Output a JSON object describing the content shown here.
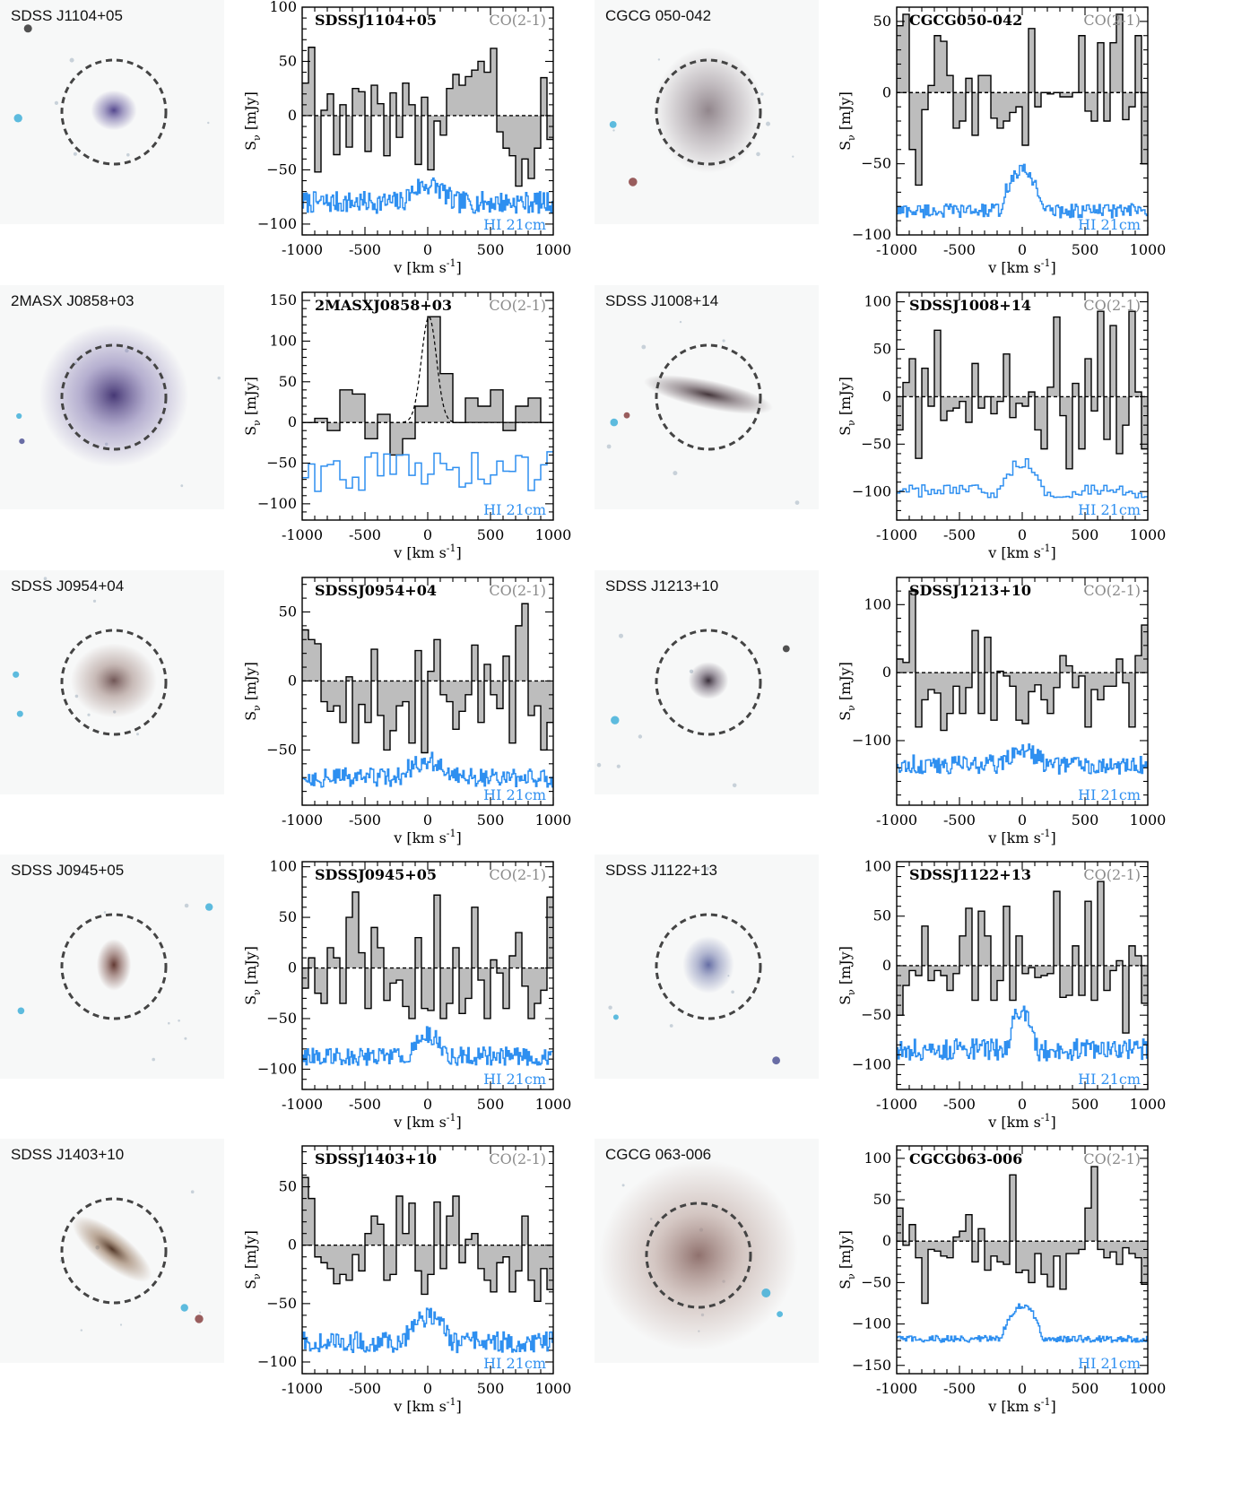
{
  "figure": {
    "line_label": "CO(2-1)",
    "hi_label": "HI 21cm",
    "x_axis_label": "v [km s",
    "x_axis_exp": "-1",
    "x_axis_close": "]",
    "y_axis_label_main": "S",
    "y_axis_label_sub": "ν",
    "y_axis_label_unit": " [mJy]",
    "colors": {
      "co_fill": "#bdbdbd",
      "co_line": "#000000",
      "hi_line": "#2e8ff0",
      "circle": "#444444"
    }
  },
  "panels": [
    {
      "image_label": "SDSS J1104+05",
      "spec_name": "SDSSJ1104+05",
      "galaxy": "bluecompact"
    },
    {
      "image_label": "CGCG 050-042",
      "spec_name": "CGCG050-042",
      "galaxy": "diffuse"
    },
    {
      "image_label": "2MASX J0858+03",
      "spec_name": "2MASXJ0858+03",
      "galaxy": "large"
    },
    {
      "image_label": "SDSS J1008+14",
      "spec_name": "SDSSJ1008+14",
      "galaxy": "edgeon"
    },
    {
      "image_label": "SDSS J0954+04",
      "spec_name": "SDSSJ0954+04",
      "galaxy": "orange"
    },
    {
      "image_label": "SDSS J1213+10",
      "spec_name": "SDSSJ1213+10",
      "galaxy": "small"
    },
    {
      "image_label": "SDSS J0945+05",
      "spec_name": "SDSSJ0945+05",
      "galaxy": "reddish"
    },
    {
      "image_label": "SDSS J1122+13",
      "spec_name": "SDSSJ1122+13",
      "galaxy": "faintblue"
    },
    {
      "image_label": "SDSS J1403+10",
      "spec_name": "SDSSJ1403+10",
      "galaxy": "tilted"
    },
    {
      "image_label": "CGCG 063-006",
      "spec_name": "CGCG063-006",
      "galaxy": "spiral"
    }
  ],
  "chart_data": [
    {
      "type": "line",
      "name": "SDSSJ1104+05",
      "xlim": [
        -1000,
        1000
      ],
      "xticks": [
        -1000,
        -500,
        0,
        500,
        1000
      ],
      "ylim": [
        -110,
        100
      ],
      "yticks": [
        -100,
        -50,
        0,
        50,
        100
      ],
      "co_x": [
        -1000,
        -950,
        -900,
        -850,
        -800,
        -750,
        -700,
        -650,
        -600,
        -550,
        -500,
        -450,
        -400,
        -350,
        -300,
        -250,
        -200,
        -150,
        -100,
        -50,
        0,
        50,
        100,
        150,
        200,
        250,
        300,
        350,
        400,
        450,
        500,
        550,
        600,
        650,
        700,
        750,
        800,
        850,
        900,
        950
      ],
      "co_y": [
        30,
        63,
        -52,
        5,
        20,
        -36,
        10,
        -29,
        25,
        22,
        -33,
        28,
        11,
        -37,
        21,
        -20,
        30,
        10,
        -45,
        17,
        -50,
        -5,
        -18,
        25,
        38,
        28,
        36,
        42,
        50,
        40,
        62,
        -15,
        -30,
        -37,
        -65,
        -40,
        -58,
        -30,
        35,
        -22
      ],
      "hi_y_center": -80,
      "hi_amp": 16,
      "hi_width": 200,
      "hi_noise": 10,
      "hi_bins": 200
    },
    {
      "type": "line",
      "name": "CGCG050-042",
      "xlim": [
        -1000,
        1000
      ],
      "xticks": [
        -1000,
        -500,
        0,
        500,
        1000
      ],
      "ylim": [
        -100,
        60
      ],
      "yticks": [
        -100,
        -50,
        0,
        50
      ],
      "co_x": [
        -1000,
        -950,
        -900,
        -850,
        -800,
        -750,
        -700,
        -650,
        -600,
        -550,
        -500,
        -450,
        -400,
        -350,
        -300,
        -250,
        -200,
        -150,
        -100,
        -50,
        0,
        50,
        100,
        150,
        200,
        250,
        300,
        350,
        400,
        450,
        500,
        550,
        600,
        650,
        700,
        750,
        800,
        850,
        900,
        950
      ],
      "co_y": [
        47,
        55,
        -40,
        -65,
        -12,
        5,
        40,
        36,
        12,
        -25,
        -20,
        10,
        -30,
        12,
        12,
        -18,
        -25,
        -20,
        -14,
        -10,
        -37,
        45,
        -10,
        0,
        -1,
        0,
        -3,
        -3,
        0,
        40,
        -13,
        -20,
        35,
        -20,
        35,
        55,
        -19,
        -10,
        40,
        -50
      ],
      "hi_y_center": -83,
      "hi_amp": 28,
      "hi_width": 180,
      "hi_noise": 5,
      "hi_bins": 180
    },
    {
      "type": "line",
      "name": "2MASXJ0858+03",
      "xlim": [
        -1000,
        1000
      ],
      "xticks": [
        -1000,
        -500,
        0,
        500,
        1000
      ],
      "ylim": [
        -120,
        160
      ],
      "yticks": [
        -100,
        -50,
        0,
        50,
        100,
        150
      ],
      "co_x": [
        -1000,
        -900,
        -800,
        -700,
        -600,
        -500,
        -400,
        -300,
        -200,
        -100,
        0,
        100,
        200,
        300,
        400,
        500,
        600,
        700,
        800,
        900
      ],
      "co_y": [
        0,
        5,
        -10,
        40,
        35,
        -20,
        10,
        -40,
        -20,
        20,
        130,
        60,
        0,
        30,
        20,
        40,
        -10,
        20,
        30,
        0
      ],
      "gauss": {
        "amp": 130,
        "center": 10,
        "sigma": 60
      },
      "hi_y_center": -60,
      "hi_amp": 0,
      "hi_width": 200,
      "hi_noise": 25,
      "hi_bins": 40
    },
    {
      "type": "line",
      "name": "SDSSJ1008+14",
      "xlim": [
        -1000,
        1000
      ],
      "xticks": [
        -1000,
        -500,
        0,
        500,
        1000
      ],
      "ylim": [
        -130,
        110
      ],
      "yticks": [
        -100,
        -50,
        0,
        50,
        100
      ],
      "co_x": [
        -1000,
        -950,
        -900,
        -850,
        -800,
        -750,
        -700,
        -650,
        -600,
        -550,
        -500,
        -450,
        -400,
        -350,
        -300,
        -250,
        -200,
        -150,
        -100,
        -50,
        0,
        50,
        100,
        150,
        200,
        250,
        300,
        350,
        400,
        450,
        500,
        550,
        600,
        650,
        700,
        750,
        800,
        850,
        900,
        950
      ],
      "co_y": [
        -35,
        15,
        40,
        -65,
        30,
        -10,
        70,
        -25,
        -15,
        -12,
        -5,
        -27,
        35,
        -12,
        0,
        -18,
        -5,
        45,
        -22,
        -7,
        -10,
        5,
        -35,
        -55,
        10,
        84,
        -20,
        -76,
        14,
        -55,
        40,
        -15,
        90,
        -45,
        75,
        -60,
        -30,
        90,
        5,
        -55
      ],
      "hi_y_center": -100,
      "hi_amp": 30,
      "hi_width": 160,
      "hi_noise": 7,
      "hi_bins": 80
    },
    {
      "type": "line",
      "name": "SDSSJ0954+04",
      "xlim": [
        -1000,
        1000
      ],
      "xticks": [
        -1000,
        -500,
        0,
        500,
        1000
      ],
      "ylim": [
        -90,
        75
      ],
      "yticks": [
        -50,
        0,
        50
      ],
      "co_x": [
        -1000,
        -950,
        -900,
        -850,
        -800,
        -750,
        -700,
        -650,
        -600,
        -550,
        -500,
        -450,
        -400,
        -350,
        -300,
        -250,
        -200,
        -150,
        -100,
        -50,
        0,
        50,
        100,
        150,
        200,
        250,
        300,
        350,
        400,
        450,
        500,
        550,
        600,
        650,
        700,
        750,
        800,
        850,
        900,
        950
      ],
      "co_y": [
        37,
        30,
        27,
        -15,
        -22,
        -18,
        -30,
        3,
        -45,
        -17,
        -30,
        23,
        -25,
        -50,
        -36,
        -18,
        -15,
        -45,
        22,
        -52,
        7,
        30,
        -10,
        -15,
        -35,
        -22,
        -10,
        26,
        -30,
        12,
        -10,
        -20,
        18,
        -45,
        40,
        56,
        -25,
        -18,
        -50,
        -30
      ],
      "hi_y_center": -70,
      "hi_amp": 12,
      "hi_width": 220,
      "hi_noise": 7,
      "hi_bins": 200
    },
    {
      "type": "line",
      "name": "SDSSJ1213+10",
      "xlim": [
        -1000,
        1000
      ],
      "xticks": [
        -1000,
        -500,
        0,
        500,
        1000
      ],
      "ylim": [
        -195,
        140
      ],
      "yticks": [
        -100,
        0,
        100
      ],
      "co_x": [
        -1000,
        -950,
        -900,
        -850,
        -800,
        -750,
        -700,
        -650,
        -600,
        -550,
        -500,
        -450,
        -400,
        -350,
        -300,
        -250,
        -200,
        -150,
        -100,
        -50,
        0,
        50,
        100,
        150,
        200,
        250,
        300,
        350,
        400,
        450,
        500,
        550,
        600,
        650,
        700,
        750,
        800,
        850,
        900,
        950
      ],
      "co_y": [
        20,
        15,
        120,
        -80,
        -40,
        -25,
        -30,
        -85,
        -60,
        -20,
        -60,
        -22,
        62,
        -60,
        52,
        -70,
        2,
        -5,
        -20,
        -70,
        -75,
        -28,
        -18,
        -40,
        -60,
        -22,
        25,
        10,
        -22,
        -5,
        -80,
        -25,
        -40,
        -20,
        -20,
        20,
        -15,
        -80,
        25,
        70
      ],
      "hi_y_center": -135,
      "hi_amp": 20,
      "hi_width": 180,
      "hi_noise": 14,
      "hi_bins": 200
    },
    {
      "type": "line",
      "name": "SDSSJ0945+05",
      "xlim": [
        -1000,
        1000
      ],
      "xticks": [
        -1000,
        -500,
        0,
        500,
        1000
      ],
      "ylim": [
        -120,
        105
      ],
      "yticks": [
        -100,
        -50,
        0,
        50,
        100
      ],
      "co_x": [
        -1000,
        -950,
        -900,
        -850,
        -800,
        -750,
        -700,
        -650,
        -600,
        -550,
        -500,
        -450,
        -400,
        -350,
        -300,
        -250,
        -200,
        -150,
        -100,
        -50,
        0,
        50,
        100,
        150,
        200,
        250,
        300,
        350,
        400,
        450,
        500,
        550,
        600,
        650,
        700,
        750,
        800,
        850,
        900,
        950
      ],
      "co_y": [
        -20,
        10,
        -25,
        -35,
        20,
        10,
        -35,
        50,
        75,
        15,
        -40,
        40,
        20,
        -32,
        -15,
        -12,
        -38,
        -50,
        30,
        -40,
        -42,
        72,
        -50,
        -35,
        20,
        -45,
        -30,
        60,
        -12,
        -50,
        8,
        -5,
        -40,
        12,
        35,
        -18,
        -50,
        -35,
        -22,
        70
      ],
      "hi_y_center": -87,
      "hi_amp": 20,
      "hi_width": 160,
      "hi_noise": 9,
      "hi_bins": 200
    },
    {
      "type": "line",
      "name": "SDSSJ1122+13",
      "xlim": [
        -1000,
        1000
      ],
      "xticks": [
        -1000,
        -500,
        0,
        500,
        1000
      ],
      "ylim": [
        -125,
        105
      ],
      "yticks": [
        -100,
        -50,
        0,
        50,
        100
      ],
      "co_x": [
        -1000,
        -950,
        -900,
        -850,
        -800,
        -750,
        -700,
        -650,
        -600,
        -550,
        -500,
        -450,
        -400,
        -350,
        -300,
        -250,
        -200,
        -150,
        -100,
        -50,
        0,
        50,
        100,
        150,
        200,
        250,
        300,
        350,
        400,
        450,
        500,
        550,
        600,
        650,
        700,
        750,
        800,
        850,
        900,
        950
      ],
      "co_y": [
        -50,
        -20,
        -5,
        -10,
        40,
        -15,
        -5,
        -10,
        -25,
        -8,
        30,
        58,
        -35,
        55,
        30,
        -35,
        -15,
        60,
        -35,
        30,
        -8,
        -2,
        -12,
        -10,
        -8,
        75,
        -32,
        -30,
        20,
        -30,
        65,
        -35,
        85,
        -25,
        -5,
        5,
        -68,
        20,
        10,
        -38
      ],
      "hi_y_center": -85,
      "hi_amp": 40,
      "hi_width": 120,
      "hi_noise": 11,
      "hi_bins": 200
    },
    {
      "type": "line",
      "name": "SDSSJ1403+10",
      "xlim": [
        -1000,
        1000
      ],
      "xticks": [
        -1000,
        -500,
        0,
        500,
        1000
      ],
      "ylim": [
        -110,
        85
      ],
      "yticks": [
        -100,
        -50,
        0,
        50
      ],
      "co_x": [
        -1000,
        -950,
        -900,
        -850,
        -800,
        -750,
        -700,
        -650,
        -600,
        -550,
        -500,
        -450,
        -400,
        -350,
        -300,
        -250,
        -200,
        -150,
        -100,
        -50,
        0,
        50,
        100,
        150,
        200,
        250,
        300,
        350,
        400,
        450,
        500,
        550,
        600,
        650,
        700,
        750,
        800,
        850,
        900,
        950
      ],
      "co_y": [
        58,
        40,
        -10,
        -15,
        -20,
        -33,
        -25,
        -30,
        -8,
        -22,
        10,
        25,
        18,
        -30,
        -25,
        42,
        10,
        36,
        -22,
        -42,
        -25,
        37,
        -20,
        25,
        42,
        -15,
        5,
        10,
        -20,
        -30,
        -40,
        -15,
        -10,
        -40,
        -22,
        25,
        -30,
        -48,
        -20,
        -38
      ],
      "hi_y_center": -83,
      "hi_amp": 22,
      "hi_width": 190,
      "hi_noise": 9,
      "hi_bins": 200
    },
    {
      "type": "line",
      "name": "CGCG063-006",
      "xlim": [
        -1000,
        1000
      ],
      "xticks": [
        -1000,
        -500,
        0,
        500,
        1000
      ],
      "ylim": [
        -160,
        115
      ],
      "yticks": [
        -150,
        -100,
        -50,
        0,
        50,
        100
      ],
      "co_x": [
        -1000,
        -950,
        -900,
        -850,
        -800,
        -750,
        -700,
        -650,
        -600,
        -550,
        -500,
        -450,
        -400,
        -350,
        -300,
        -250,
        -200,
        -150,
        -100,
        -50,
        0,
        50,
        100,
        150,
        200,
        250,
        300,
        350,
        400,
        450,
        500,
        550,
        600,
        650,
        700,
        750,
        800,
        850,
        900,
        950
      ],
      "co_y": [
        40,
        -5,
        20,
        -20,
        -75,
        -10,
        -12,
        -18,
        -20,
        5,
        12,
        32,
        -25,
        15,
        -35,
        -18,
        -25,
        -28,
        80,
        -38,
        -35,
        -50,
        -15,
        -40,
        -55,
        -18,
        -58,
        -15,
        -15,
        -10,
        40,
        90,
        -10,
        -20,
        -13,
        -28,
        -8,
        -15,
        -20,
        -52
      ],
      "hi_y_center": -118,
      "hi_amp": 40,
      "hi_width": 170,
      "hi_noise": 4,
      "hi_bins": 200
    }
  ]
}
